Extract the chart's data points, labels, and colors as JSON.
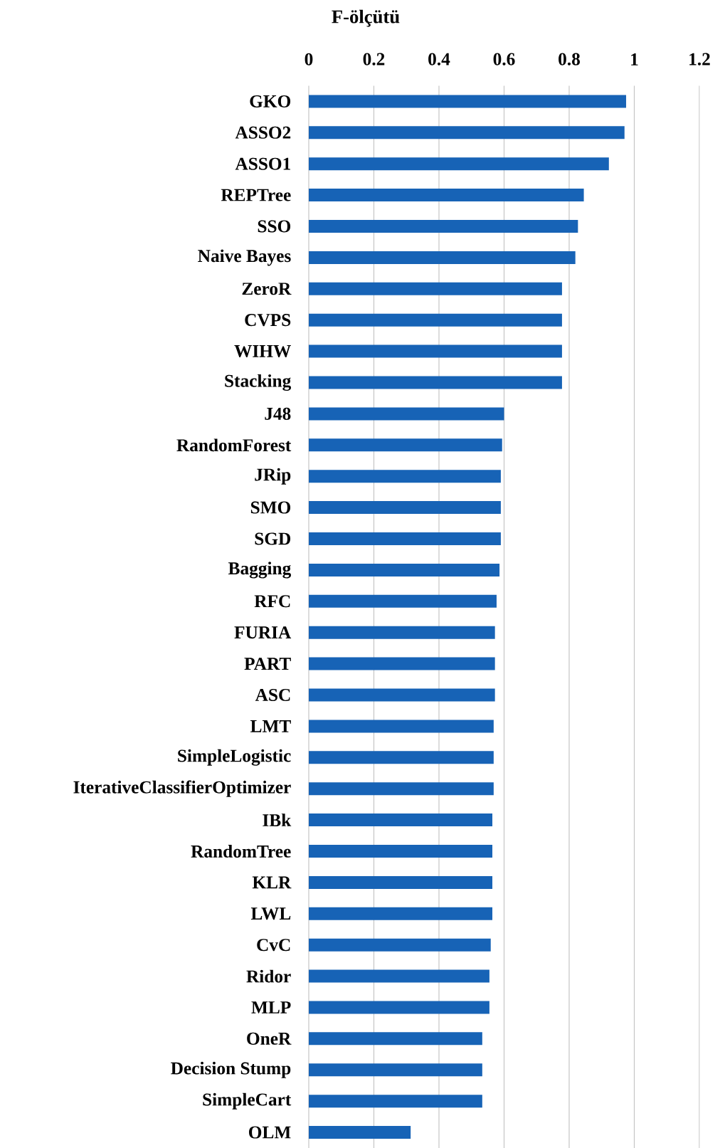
{
  "chart_data": {
    "type": "bar",
    "orientation": "horizontal",
    "title": "F-ölçütü",
    "categories": [
      "GKO",
      "ASSO2",
      "ASSO1",
      "REPTree",
      "SSO",
      "Naive Bayes",
      "ZeroR",
      "CVPS",
      "WIHW",
      "Stacking",
      "J48",
      "RandomForest",
      "JRip",
      "SMO",
      "SGD",
      "Bagging",
      "RFC",
      "FURIA",
      "PART",
      "ASC",
      "LMT",
      "SimpleLogistic",
      "IterativeClassifierOptimizer",
      "IBk",
      "RandomTree",
      "KLR",
      "LWL",
      "CvC",
      "Ridor",
      "MLP",
      "OneR",
      "Decision Stump",
      "SimpleCart",
      "OLM"
    ],
    "values": [
      0.975,
      0.97,
      0.922,
      0.845,
      0.827,
      0.819,
      0.778,
      0.778,
      0.778,
      0.778,
      0.6,
      0.594,
      0.59,
      0.59,
      0.59,
      0.586,
      0.577,
      0.572,
      0.572,
      0.572,
      0.568,
      0.568,
      0.568,
      0.564,
      0.564,
      0.564,
      0.564,
      0.559,
      0.555,
      0.555,
      0.533,
      0.533,
      0.533,
      0.313
    ],
    "color": "#1763b6",
    "xlim": [
      0,
      1.2
    ],
    "xticks": [
      0,
      0.2,
      0.4,
      0.6,
      0.8,
      1,
      1.2
    ],
    "grid": "x"
  }
}
